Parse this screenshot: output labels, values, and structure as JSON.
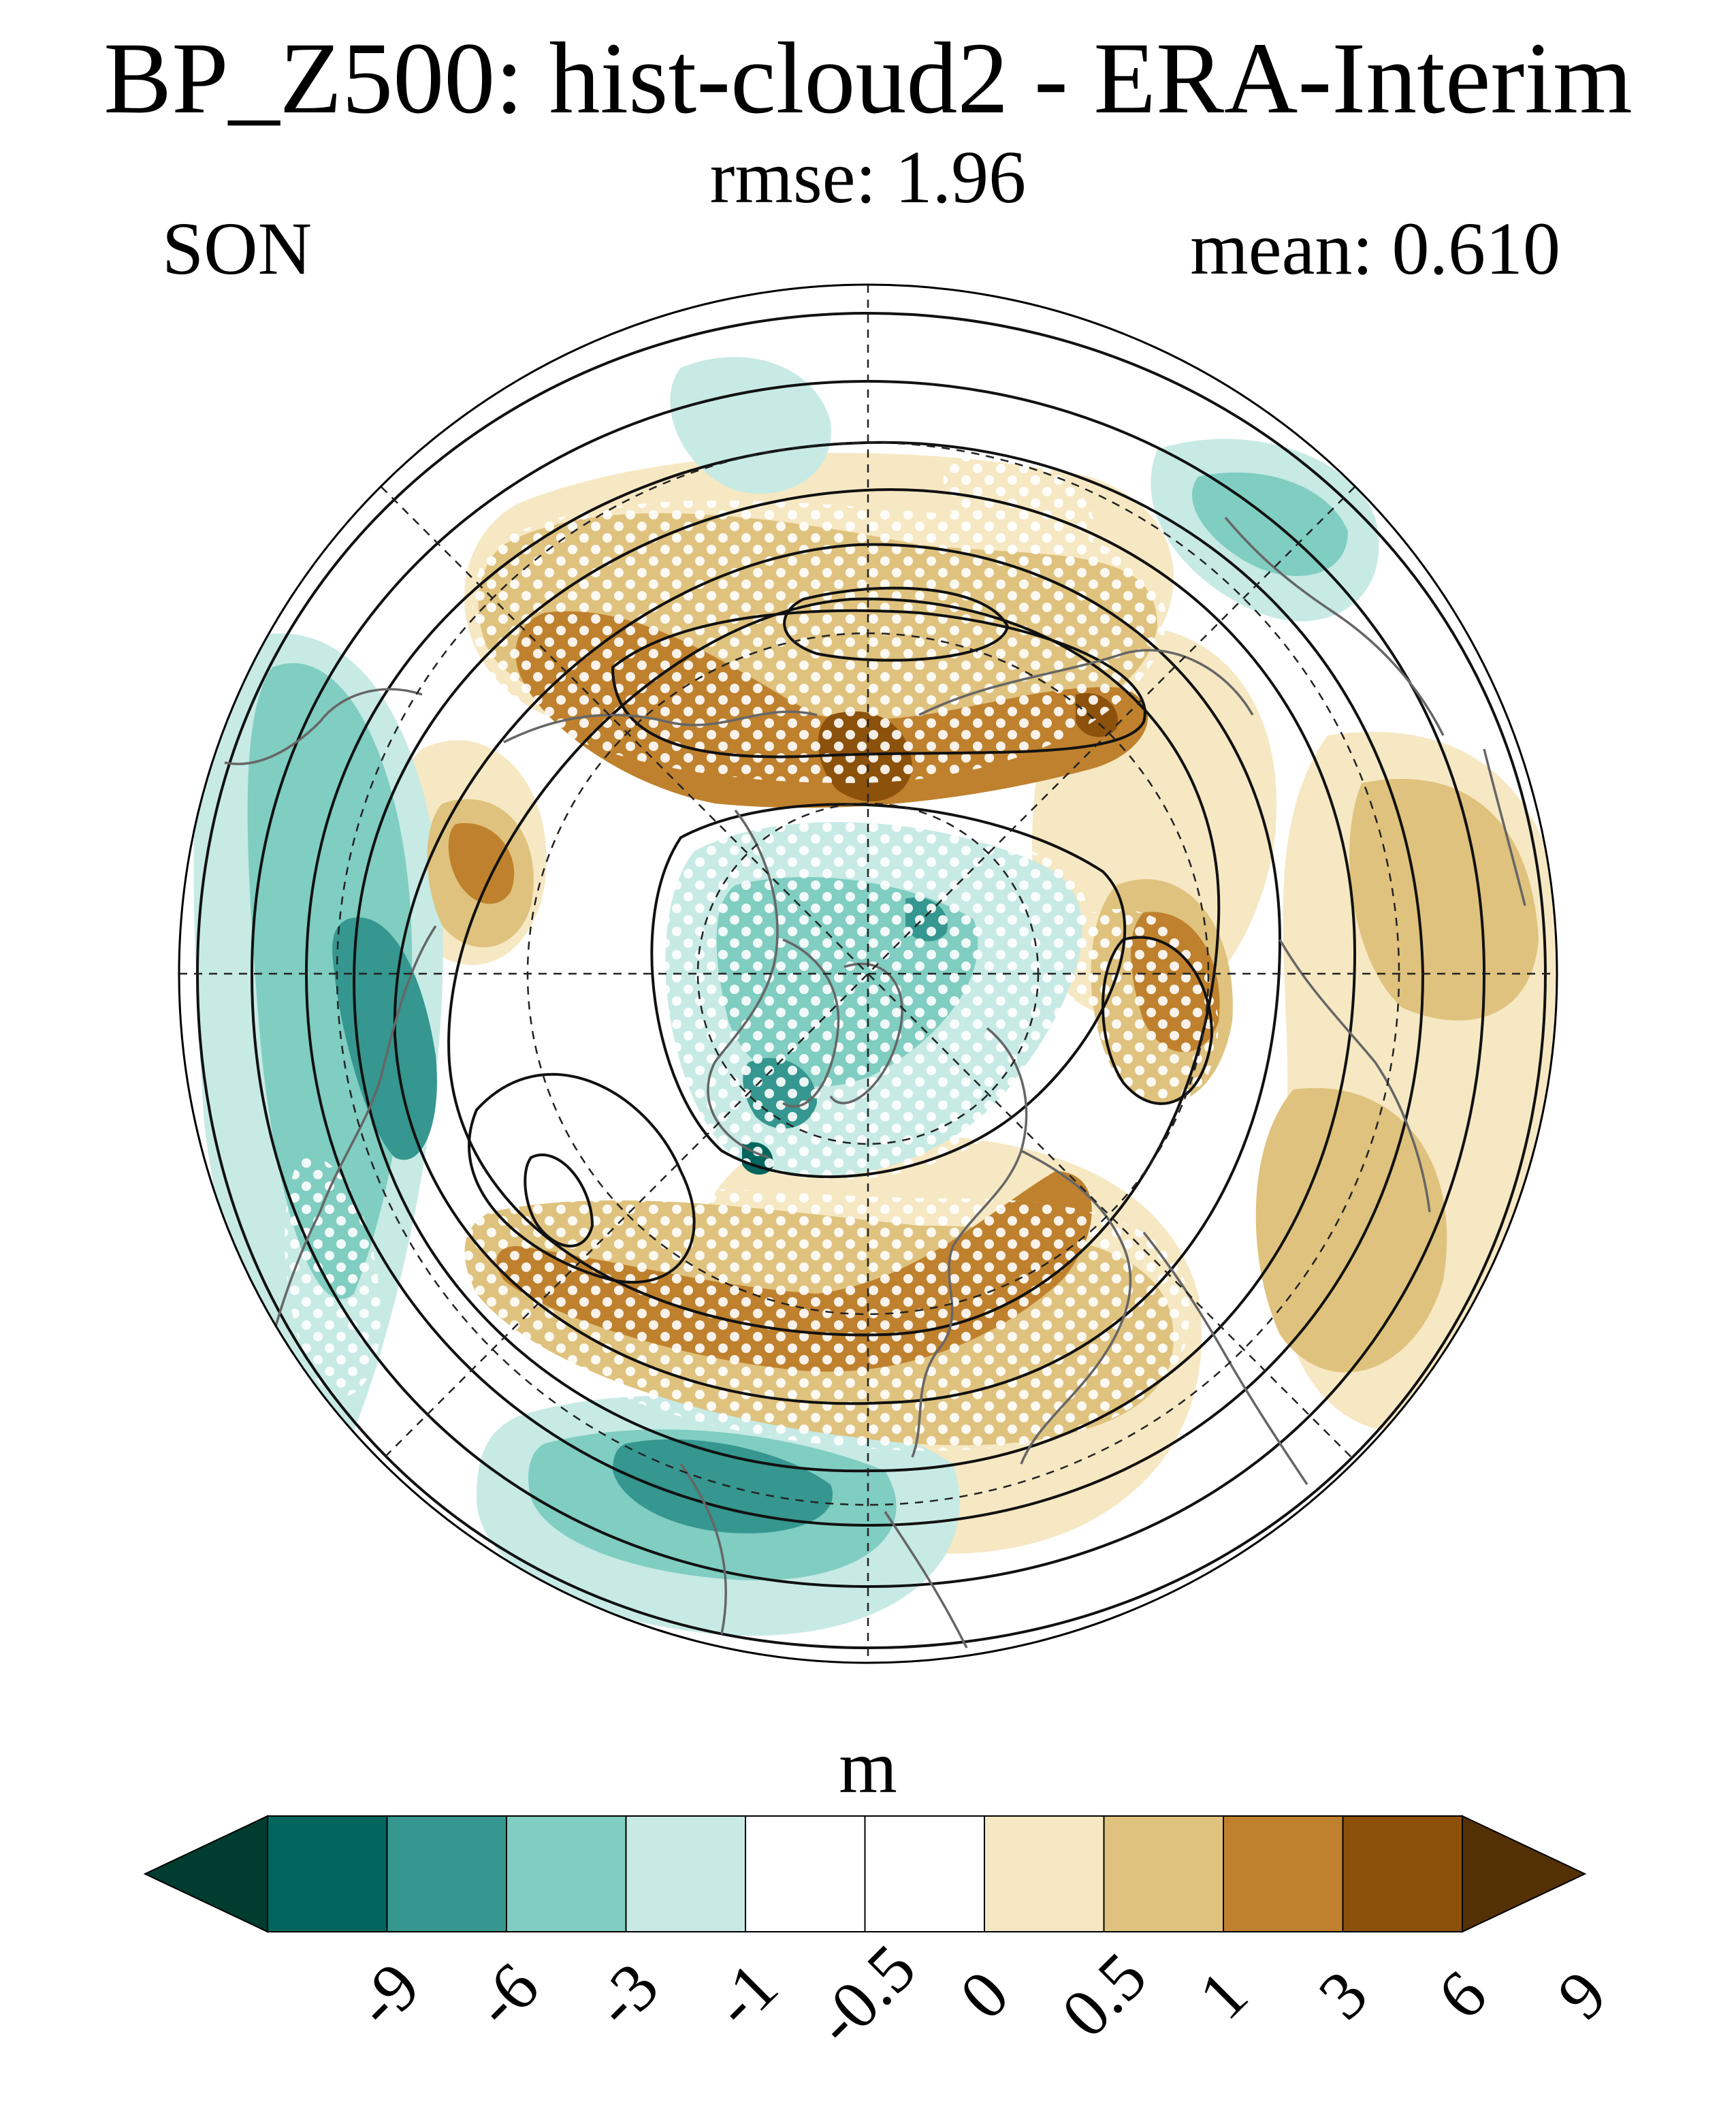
{
  "title": "BP_Z500: hist-cloud2 - ERA-Interim",
  "subtitle": "rmse: 1.96",
  "season": "SON",
  "mean_label": "mean: 0.610",
  "colorbar": {
    "unit": "m",
    "levels": [
      "-9",
      "-6",
      "-3",
      "-1",
      "-0.5",
      "0",
      "0.5",
      "1",
      "3",
      "6",
      "9"
    ],
    "colors": [
      "#003c30",
      "#01665e",
      "#35978f",
      "#80cdc1",
      "#c7eae5",
      "#ffffff",
      "#ffffff",
      "#f6e8c3",
      "#dfc27d",
      "#bf812d",
      "#8c510a",
      "#543005"
    ]
  },
  "map": {
    "projection": "north-polar-stereographic",
    "palette": {
      "strong_neg": "#01665e",
      "mid_neg": "#35978f",
      "neg": "#80cdc1",
      "weak_neg": "#c7eae5",
      "weak_pos": "#f6e8c3",
      "pos": "#dfc27d",
      "mid_pos": "#bf812d",
      "strong_pos": "#8c510a",
      "contour": "#111111",
      "coast": "#666666"
    }
  }
}
